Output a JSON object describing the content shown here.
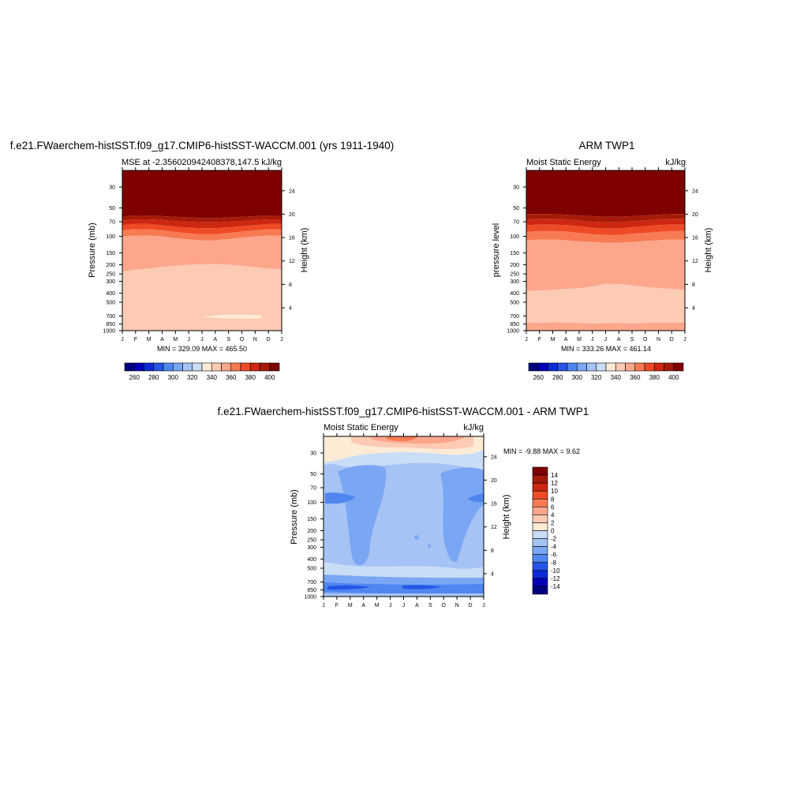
{
  "figure": {
    "top_left_title": "f.e21.FWaerchem-histSST.f09_g17.CMIP6-histSST-WACCM.001 (yrs 1911-1940)",
    "top_right_title": "ARM TWP1",
    "bottom_title": "f.e21.FWaerchem-histSST.f09_g17.CMIP6-histSST-WACCM.001 - ARM TWP1"
  },
  "chart_data": [
    {
      "id": "model",
      "type": "heatmap",
      "left_string": "MSE at -2.356020942408378,147.5",
      "right_string": "kJ/kg",
      "ylabel": "Pressure (mb)",
      "ylabel_right": "Height (km)",
      "x_ticks": [
        "J",
        "F",
        "M",
        "A",
        "M",
        "J",
        "J",
        "A",
        "S",
        "O",
        "N",
        "D",
        "J"
      ],
      "p_ticks": [
        "30",
        "50",
        "70",
        "100",
        "150",
        "200",
        "250",
        "300",
        "400",
        "500",
        "700",
        "850",
        "1000"
      ],
      "h_ticks": [
        "24",
        "20",
        "16",
        "12",
        "8",
        "4"
      ],
      "min_max_text": "MIN = 329.09 MAX = 465.50",
      "levels": [
        260,
        270,
        280,
        290,
        300,
        310,
        320,
        330,
        340,
        350,
        360,
        370,
        380,
        390,
        400
      ],
      "colorbar_labels": [
        "260",
        "280",
        "300",
        "320",
        "340",
        "360",
        "380",
        "400"
      ],
      "bands": [
        {
          "p_top": "top",
          "p_bottom": [
            62,
            60,
            60,
            61,
            62,
            63,
            64,
            64,
            63,
            62,
            61,
            60,
            60
          ],
          "value": 410
        },
        {
          "p_top": "prev",
          "p_bottom": [
            68,
            66,
            66,
            67,
            69,
            70,
            71,
            71,
            70,
            69,
            67,
            66,
            66
          ],
          "value": 395
        },
        {
          "p_top": "prev",
          "p_bottom": [
            76,
            74,
            74,
            76,
            79,
            81,
            82,
            82,
            80,
            78,
            76,
            74,
            74
          ],
          "value": 385
        },
        {
          "p_top": "prev",
          "p_bottom": [
            86,
            84,
            84,
            86,
            90,
            93,
            95,
            95,
            92,
            89,
            86,
            84,
            84
          ],
          "value": 375
        },
        {
          "p_top": "prev",
          "p_bottom": [
            100,
            98,
            98,
            100,
            105,
            108,
            110,
            110,
            107,
            103,
            100,
            98,
            98
          ],
          "value": 360
        },
        {
          "p_top": "prev",
          "p_bottom": [
            235,
            225,
            220,
            210,
            205,
            200,
            198,
            197,
            200,
            205,
            212,
            220,
            225
          ],
          "value": 350
        },
        {
          "p_top": "prev",
          "p_bottom": [
            990,
            990,
            990,
            990,
            990,
            990,
            990,
            990,
            990,
            990,
            990,
            990,
            990
          ],
          "value": 340
        },
        {
          "p_top": "prev",
          "p_bottom": "bottom",
          "value": 350
        }
      ],
      "blob": {
        "value": 330,
        "p_top": 690,
        "p_bottom": 740,
        "month_start": 6.0,
        "month_end": 10.5
      }
    },
    {
      "id": "obs",
      "type": "heatmap",
      "left_string": "Moist Static Energy",
      "right_string": "kJ/kg",
      "ylabel": "pressure level",
      "ylabel_right": "Height (km)",
      "x_ticks": [
        "J",
        "F",
        "M",
        "A",
        "M",
        "J",
        "J",
        "A",
        "S",
        "O",
        "N",
        "D",
        "J"
      ],
      "p_ticks": [
        "30",
        "50",
        "70",
        "100",
        "150",
        "200",
        "250",
        "300",
        "400",
        "500",
        "700",
        "850",
        "1000"
      ],
      "h_ticks": [
        "24",
        "20",
        "16",
        "12",
        "8",
        "4"
      ],
      "min_max_text": "MIN = 333.26 MAX = 461.14",
      "levels": [
        260,
        270,
        280,
        290,
        300,
        310,
        320,
        330,
        340,
        350,
        360,
        370,
        380,
        390,
        400
      ],
      "colorbar_labels": [
        "260",
        "280",
        "300",
        "320",
        "340",
        "360",
        "380",
        "400"
      ],
      "bands": [
        {
          "p_top": "top",
          "p_bottom": [
            58,
            58,
            58,
            59,
            60,
            61,
            62,
            62,
            61,
            60,
            59,
            58,
            58
          ],
          "value": 410
        },
        {
          "p_top": "prev",
          "p_bottom": [
            66,
            65,
            65,
            66,
            68,
            70,
            71,
            71,
            69,
            68,
            66,
            65,
            65
          ],
          "value": 395
        },
        {
          "p_top": "prev",
          "p_bottom": [
            76,
            75,
            75,
            76,
            78,
            81,
            83,
            83,
            80,
            78,
            76,
            75,
            75
          ],
          "value": 385
        },
        {
          "p_top": "prev",
          "p_bottom": [
            90,
            88,
            88,
            89,
            92,
            95,
            97,
            97,
            94,
            92,
            90,
            88,
            88
          ],
          "value": 375
        },
        {
          "p_top": "prev",
          "p_bottom": [
            110,
            108,
            108,
            110,
            113,
            115,
            117,
            117,
            115,
            112,
            110,
            108,
            108
          ],
          "value": 360
        },
        {
          "p_top": "prev",
          "p_bottom": [
            380,
            375,
            370,
            360,
            355,
            340,
            320,
            320,
            330,
            345,
            355,
            360,
            370
          ],
          "value": 350
        },
        {
          "p_top": "prev",
          "p_bottom": [
            820,
            830,
            815,
            820,
            830,
            840,
            835,
            830,
            840,
            830,
            820,
            825,
            820
          ],
          "value": 340
        },
        {
          "p_top": "prev",
          "p_bottom": "bottom",
          "value": 350
        }
      ]
    },
    {
      "id": "diff",
      "type": "heatmap",
      "left_string": "Moist Static Energy",
      "right_string": "kJ/kg",
      "ylabel": "Pressure (mb)",
      "ylabel_right": "Height (km)",
      "x_ticks": [
        "J",
        "F",
        "M",
        "A",
        "M",
        "J",
        "J",
        "A",
        "S",
        "O",
        "N",
        "D",
        "J"
      ],
      "p_ticks": [
        "30",
        "50",
        "70",
        "100",
        "150",
        "200",
        "250",
        "300",
        "400",
        "500",
        "700",
        "850",
        "1000"
      ],
      "h_ticks": [
        "24",
        "20",
        "16",
        "12",
        "8",
        "4"
      ],
      "min_max_text": "MIN =  -9.88 MAX =   9.62",
      "levels": [
        -14,
        -12,
        -10,
        -8,
        -6,
        -4,
        -2,
        0,
        2,
        4,
        6,
        8,
        10,
        12,
        14
      ],
      "colorbar_labels": [
        "14",
        "12",
        "10",
        "8",
        "6",
        "4",
        "2",
        "0",
        "-2",
        "-4",
        "-6",
        "-8",
        "-10",
        "-12",
        "-14"
      ]
    }
  ],
  "colors": {
    "palette": [
      "#00007f",
      "#0000b8",
      "#0a2bd6",
      "#2455e6",
      "#4f86f0",
      "#7aa6f3",
      "#a6c3f5",
      "#c9ddf6",
      "#fdebd6",
      "#fdcab4",
      "#fca68c",
      "#f77a52",
      "#ee4a26",
      "#cc2710",
      "#a61a08",
      "#7f0000"
    ],
    "axis": "#000000",
    "background": "#ffffff"
  }
}
